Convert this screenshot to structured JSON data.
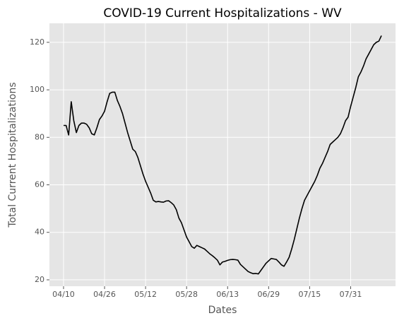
{
  "chart_data": {
    "type": "line",
    "title": "COVID-19 Current Hospitalizations - WV",
    "x_label": "Dates",
    "y_label": "Total Current Hospitalizations",
    "categories": [
      "04/10",
      null,
      null,
      null,
      null,
      null,
      null,
      null,
      null,
      null,
      null,
      null,
      null,
      null,
      null,
      null,
      "04/26",
      null,
      null,
      null,
      null,
      null,
      null,
      null,
      null,
      null,
      null,
      null,
      null,
      null,
      null,
      null,
      "05/12",
      null,
      null,
      null,
      null,
      null,
      null,
      null,
      null,
      null,
      null,
      null,
      null,
      null,
      null,
      null,
      "05/28",
      null,
      null,
      null,
      null,
      null,
      null,
      null,
      null,
      null,
      null,
      null,
      null,
      null,
      null,
      null,
      "06/13",
      null,
      null,
      null,
      null,
      null,
      null,
      null,
      null,
      null,
      null,
      null,
      null,
      null,
      null,
      null,
      "06/29",
      null,
      null,
      null,
      null,
      null,
      null,
      null,
      null,
      null,
      null,
      null,
      null,
      null,
      null,
      null,
      "07/15",
      null,
      null,
      null,
      null,
      null,
      null,
      null,
      null,
      null,
      null,
      null,
      null,
      null,
      null,
      null,
      "07/31",
      null,
      null,
      null,
      null,
      null,
      null,
      null,
      null,
      null,
      null,
      null,
      null
    ],
    "series": [
      {
        "name": "Current Hospitalizations",
        "color": "#000000",
        "values": [
          85,
          85,
          81,
          95,
          87,
          82,
          85,
          86,
          86,
          85.5,
          84,
          81.5,
          81,
          84,
          87.5,
          89,
          91,
          95,
          98.5,
          99,
          99,
          95.5,
          93,
          90,
          86,
          82,
          78.5,
          75,
          74,
          71.5,
          68,
          64.5,
          61.5,
          59,
          56.5,
          53.5,
          52.8,
          53,
          52.8,
          52.7,
          53.2,
          53.3,
          52.5,
          51.5,
          49.5,
          46,
          44,
          41,
          38,
          36,
          34,
          33.3,
          34.5,
          34,
          33.5,
          33,
          32,
          31,
          30.2,
          29.3,
          28.3,
          26.3,
          27.5,
          27.8,
          28.2,
          28.5,
          28.6,
          28.5,
          28.3,
          26.5,
          25.5,
          24.5,
          23.5,
          23,
          22.6,
          22.7,
          22.5,
          24,
          25.5,
          27,
          28,
          29,
          28.8,
          28.6,
          27.5,
          26.3,
          25.7,
          27.5,
          29.5,
          33,
          37,
          41.5,
          46,
          50,
          53.5,
          55.5,
          57.5,
          59.5,
          61.5,
          64,
          67,
          69,
          71.5,
          74,
          77,
          78,
          79,
          80,
          81.5,
          84,
          87,
          88.5,
          93,
          97,
          101,
          105.5,
          107.5,
          110,
          113,
          115,
          117,
          119,
          120,
          120.5,
          122.8
        ]
      }
    ],
    "xlim": [
      -5.5,
      129.5
    ],
    "ylim": [
      17.3,
      128
    ],
    "yticks": [
      20,
      40,
      60,
      80,
      100,
      120
    ],
    "grid": true
  }
}
